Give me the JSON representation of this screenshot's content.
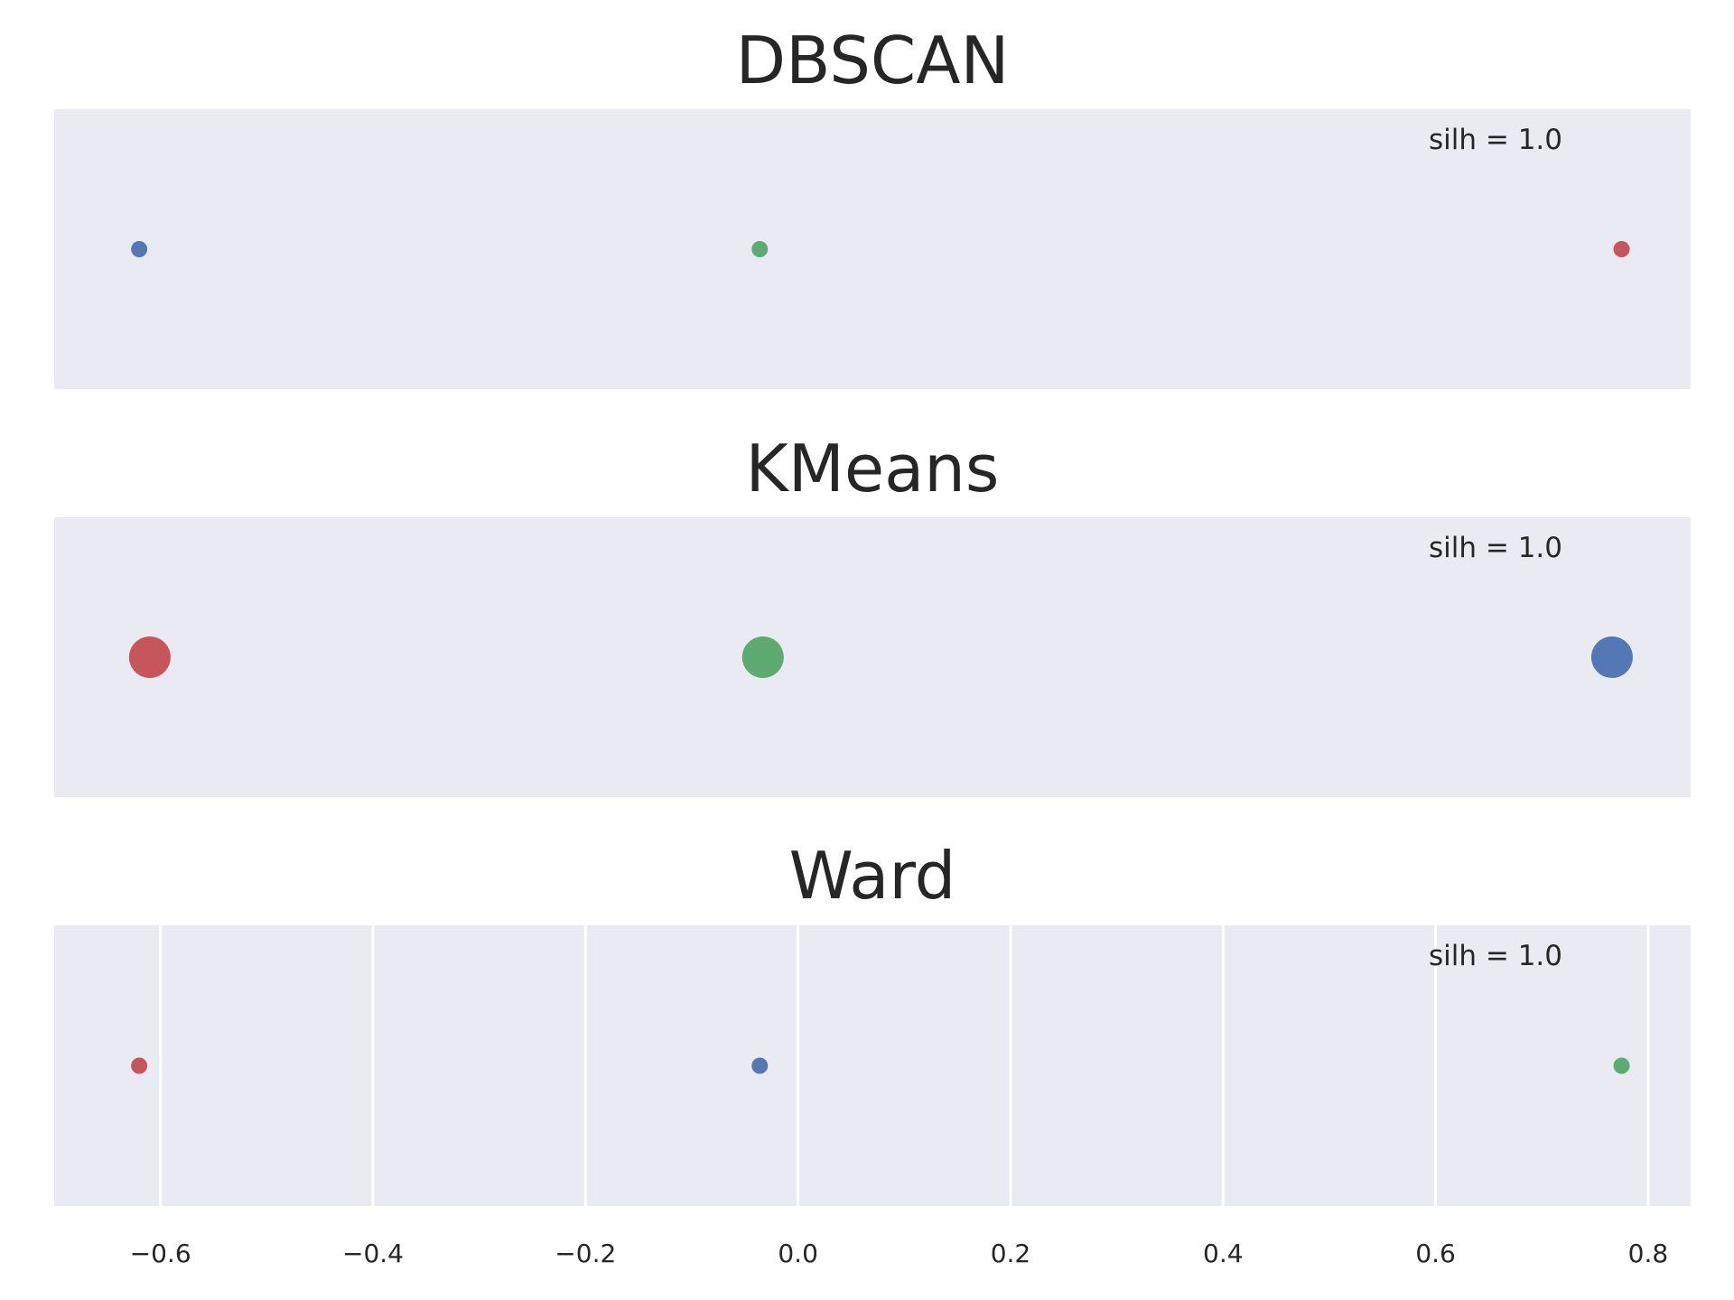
{
  "chart_data": [
    {
      "type": "scatter",
      "title": "DBSCAN",
      "annotation": "silh = 1.0",
      "grid": false,
      "show_x_axis": false,
      "xlim": [
        -0.7,
        0.84
      ],
      "ylim": [
        -1,
        1
      ],
      "series": [
        {
          "points": [
            {
              "x": -0.62,
              "y": 0
            }
          ],
          "color": "#4c72b0",
          "size": "small"
        },
        {
          "points": [
            {
              "x": -0.036,
              "y": 0
            }
          ],
          "color": "#55a868",
          "size": "small"
        },
        {
          "points": [
            {
              "x": 0.775,
              "y": 0
            }
          ],
          "color": "#c44e52",
          "size": "small"
        }
      ]
    },
    {
      "type": "scatter",
      "title": "KMeans",
      "annotation": "silh = 1.0",
      "grid": false,
      "show_x_axis": false,
      "xlim": [
        -0.7,
        0.84
      ],
      "ylim": [
        -1,
        1
      ],
      "series": [
        {
          "points": [
            {
              "x": -0.61,
              "y": 0
            }
          ],
          "color": "#c44e52",
          "size": "large"
        },
        {
          "points": [
            {
              "x": -0.033,
              "y": 0
            }
          ],
          "color": "#55a868",
          "size": "large"
        },
        {
          "points": [
            {
              "x": 0.766,
              "y": 0
            }
          ],
          "color": "#4c72b0",
          "size": "large"
        }
      ]
    },
    {
      "type": "scatter",
      "title": "Ward",
      "annotation": "silh = 1.0",
      "grid": true,
      "show_x_axis": true,
      "xlim": [
        -0.7,
        0.84
      ],
      "ylim": [
        -1,
        1
      ],
      "x_ticks": [
        -0.6,
        -0.4,
        -0.2,
        0.0,
        0.2,
        0.4,
        0.6,
        0.8
      ],
      "x_tick_labels": [
        "−0.6",
        "−0.4",
        "−0.2",
        "0.0",
        "0.2",
        "0.4",
        "0.6",
        "0.8"
      ],
      "series": [
        {
          "points": [
            {
              "x": -0.62,
              "y": 0
            }
          ],
          "color": "#c44e52",
          "size": "small"
        },
        {
          "points": [
            {
              "x": -0.036,
              "y": 0
            }
          ],
          "color": "#4c72b0",
          "size": "small"
        },
        {
          "points": [
            {
              "x": 0.775,
              "y": 0
            }
          ],
          "color": "#55a868",
          "size": "small"
        }
      ]
    }
  ],
  "style": {
    "axes_background": "#eaeaf2",
    "grid_color": "#ffffff",
    "text_color": "#262626"
  }
}
